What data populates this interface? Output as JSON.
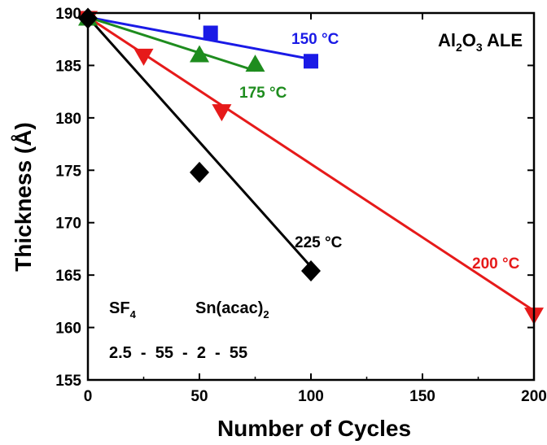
{
  "chart_data": {
    "type": "scatter",
    "title": "Al₂O₃ ALE",
    "xlabel": "Number of Cycles",
    "ylabel": "Thickness (Å)",
    "xlim": [
      0,
      200
    ],
    "ylim": [
      155,
      190
    ],
    "xticks": [
      0,
      50,
      100,
      150,
      200
    ],
    "yticks": [
      155,
      160,
      165,
      170,
      175,
      180,
      185,
      190
    ],
    "grid": false,
    "series": [
      {
        "name": "150 °C",
        "color": "#1a1ae6",
        "marker": "square",
        "x": [
          0,
          55,
          100
        ],
        "y": [
          189.5,
          188.1,
          185.4
        ],
        "fit": [
          [
            0,
            189.6
          ],
          [
            100,
            185.6
          ]
        ]
      },
      {
        "name": "175 °C",
        "color": "#1e8c1e",
        "marker": "triangle-up",
        "x": [
          0,
          50,
          75
        ],
        "y": [
          189.5,
          186.0,
          185.1
        ],
        "fit": [
          [
            0,
            189.6
          ],
          [
            75,
            184.5
          ]
        ]
      },
      {
        "name": "200 °C",
        "color": "#e61a1a",
        "marker": "triangle-down",
        "x": [
          0,
          25,
          60,
          200
        ],
        "y": [
          189.5,
          185.9,
          180.6,
          161.2
        ],
        "fit": [
          [
            0,
            189.6
          ],
          [
            200,
            161.6
          ]
        ]
      },
      {
        "name": "225 °C",
        "color": "#000000",
        "marker": "diamond",
        "x": [
          0,
          50,
          100
        ],
        "y": [
          189.5,
          174.8,
          165.4
        ],
        "fit": [
          [
            0,
            189.6
          ],
          [
            100,
            165.8
          ]
        ]
      }
    ],
    "annotations": {
      "precursor_1": "SF",
      "precursor_1_sub": "4",
      "precursor_2": "Sn(acac)",
      "precursor_2_sub": "2",
      "timing": "2.5  -  55  -  2  -  55",
      "title_main": "Al",
      "title_sub1": "2",
      "title_mid": "O",
      "title_sub2": "3",
      "title_end": " ALE"
    }
  }
}
